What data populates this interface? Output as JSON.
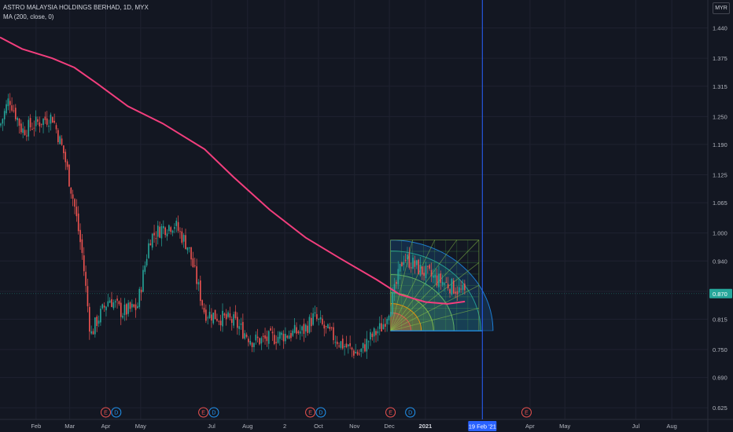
{
  "symbol_line": "ASTRO MALAYSIA HOLDINGS BERHAD, 1D, MYX",
  "indicator_line": "MA (200, close, 0)",
  "currency": "MYR",
  "colors": {
    "background": "#131722",
    "grid": "#1f2230",
    "up": "#26a69a",
    "down": "#ef5350",
    "ma": "#f23e7d",
    "crosshair": "#2962ff",
    "price_badge": "#26a69a",
    "earnings": "#ef5350",
    "dividend": "#2196f3"
  },
  "chart_data": {
    "type": "candlestick",
    "ylim": [
      0.6,
      1.5
    ],
    "y_ticks": [
      "1.440",
      "1.375",
      "1.315",
      "1.250",
      "1.190",
      "1.125",
      "1.065",
      "1.000",
      "0.940",
      "0.875",
      "0.815",
      "0.750",
      "0.690",
      "0.625"
    ],
    "x_ticks": [
      "Feb",
      "Mar",
      "Apr",
      "May",
      "Jul",
      "Aug",
      "2",
      "Oct",
      "Nov",
      "Dec",
      "2021",
      "Apr",
      "May",
      "Jul",
      "Aug"
    ],
    "crosshair_date": "19 Feb '21",
    "last_price": "0.870",
    "events": [
      {
        "type": "E",
        "date": "2020-04-01"
      },
      {
        "type": "D",
        "date": "2020-04-10"
      },
      {
        "type": "E",
        "date": "2020-06-24"
      },
      {
        "type": "D",
        "date": "2020-07-03"
      },
      {
        "type": "E",
        "date": "2020-09-24"
      },
      {
        "type": "D",
        "date": "2020-10-03"
      },
      {
        "type": "E",
        "date": "2020-12-02"
      },
      {
        "type": "D",
        "date": "2020-12-19"
      },
      {
        "type": "E",
        "date": "2021-03-29"
      }
    ],
    "close_path": [
      {
        "date": "2020-01-01",
        "close": 1.23
      },
      {
        "date": "2020-01-09",
        "close": 1.29
      },
      {
        "date": "2020-01-20",
        "close": 1.22
      },
      {
        "date": "2020-02-05",
        "close": 1.24
      },
      {
        "date": "2020-02-15",
        "close": 1.25
      },
      {
        "date": "2020-02-25",
        "close": 1.17
      },
      {
        "date": "2020-03-05",
        "close": 1.06
      },
      {
        "date": "2020-03-12",
        "close": 0.95
      },
      {
        "date": "2020-03-19",
        "close": 0.78
      },
      {
        "date": "2020-03-24",
        "close": 0.81
      },
      {
        "date": "2020-04-04",
        "close": 0.86
      },
      {
        "date": "2020-04-15",
        "close": 0.83
      },
      {
        "date": "2020-04-28",
        "close": 0.84
      },
      {
        "date": "2020-05-09",
        "close": 0.99
      },
      {
        "date": "2020-05-19",
        "close": 1.01
      },
      {
        "date": "2020-05-30",
        "close": 1.02
      },
      {
        "date": "2020-06-11",
        "close": 0.97
      },
      {
        "date": "2020-06-18",
        "close": 0.9
      },
      {
        "date": "2020-06-25",
        "close": 0.83
      },
      {
        "date": "2020-07-07",
        "close": 0.82
      },
      {
        "date": "2020-07-20",
        "close": 0.81
      },
      {
        "date": "2020-08-05",
        "close": 0.77
      },
      {
        "date": "2020-08-15",
        "close": 0.77
      },
      {
        "date": "2020-08-30",
        "close": 0.78
      },
      {
        "date": "2020-09-18",
        "close": 0.79
      },
      {
        "date": "2020-09-27",
        "close": 0.82
      },
      {
        "date": "2020-10-08",
        "close": 0.79
      },
      {
        "date": "2020-10-22",
        "close": 0.76
      },
      {
        "date": "2020-11-05",
        "close": 0.74
      },
      {
        "date": "2020-11-13",
        "close": 0.77
      },
      {
        "date": "2020-11-25",
        "close": 0.8
      },
      {
        "date": "2020-12-04",
        "close": 0.86
      },
      {
        "date": "2020-12-13",
        "close": 0.95
      },
      {
        "date": "2020-12-28",
        "close": 0.92
      },
      {
        "date": "2021-01-11",
        "close": 0.9
      },
      {
        "date": "2021-01-20",
        "close": 0.89
      },
      {
        "date": "2021-02-04",
        "close": 0.87
      }
    ],
    "ma_series": {
      "name": "MA (200, close, 0)",
      "points": [
        {
          "date": "2020-01-01",
          "value": 1.42
        },
        {
          "date": "2020-01-20",
          "value": 1.395
        },
        {
          "date": "2020-02-15",
          "value": 1.375
        },
        {
          "date": "2020-03-05",
          "value": 1.355
        },
        {
          "date": "2020-03-25",
          "value": 1.32
        },
        {
          "date": "2020-04-20",
          "value": 1.272
        },
        {
          "date": "2020-05-20",
          "value": 1.235
        },
        {
          "date": "2020-06-25",
          "value": 1.18
        },
        {
          "date": "2020-07-20",
          "value": 1.12
        },
        {
          "date": "2020-08-20",
          "value": 1.05
        },
        {
          "date": "2020-09-20",
          "value": 0.99
        },
        {
          "date": "2020-10-20",
          "value": 0.945
        },
        {
          "date": "2020-11-20",
          "value": 0.9
        },
        {
          "date": "2020-12-10",
          "value": 0.868
        },
        {
          "date": "2021-01-01",
          "value": 0.852
        },
        {
          "date": "2021-01-20",
          "value": 0.848
        },
        {
          "date": "2021-02-04",
          "value": 0.853
        }
      ]
    },
    "gann_box": {
      "start_date": "2020-12-02",
      "end_date": "2021-02-16",
      "low": 0.79,
      "high": 0.985,
      "extension_date": "2021-02-19"
    }
  }
}
